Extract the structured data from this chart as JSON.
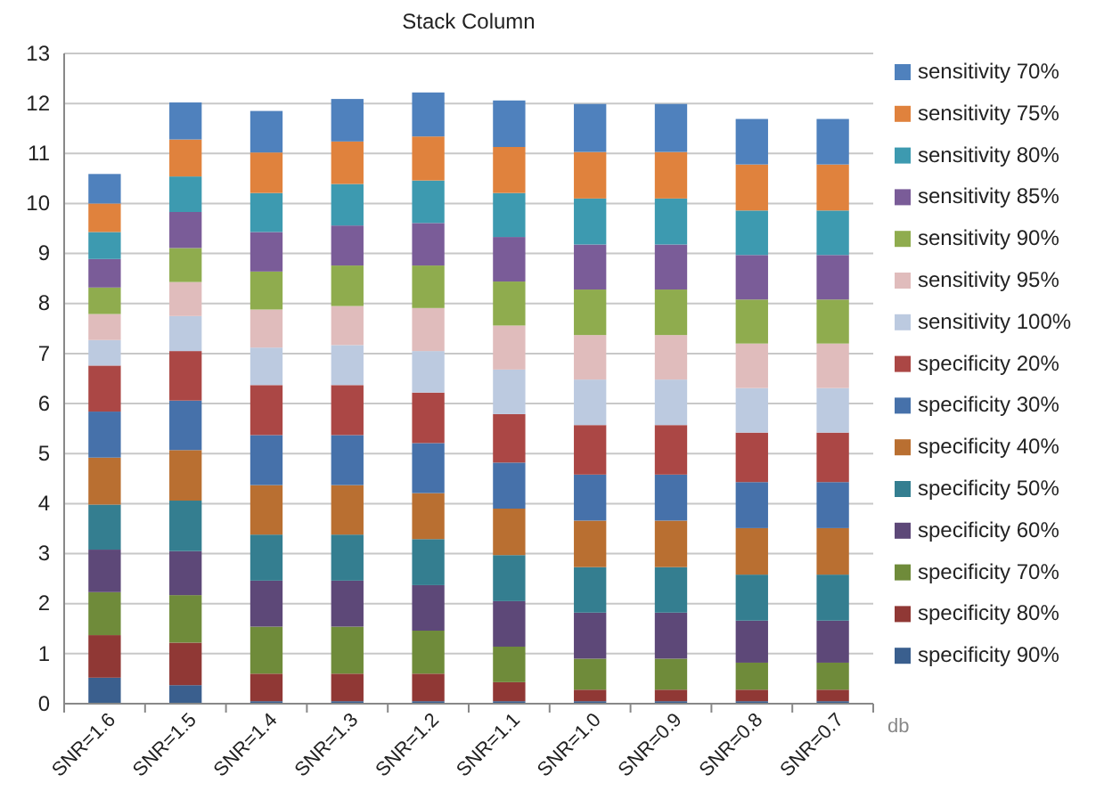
{
  "chart_data": {
    "type": "bar",
    "title": "Stack Column",
    "xlabel": "db",
    "stacked": true,
    "grid": "y",
    "legend": "right",
    "categories": [
      "SNR=1.6",
      "SNR=1.5",
      "SNR=1.4",
      "SNR=1.3",
      "SNR=1.2",
      "SNR=1.1",
      "SNR=1.0",
      "SNR=0.9",
      "SNR=0.8",
      "SNR=0.7"
    ],
    "ylim": [
      0,
      13
    ],
    "yticks": [
      0,
      1,
      2,
      3,
      4,
      5,
      6,
      7,
      8,
      9,
      10,
      11,
      12,
      13
    ],
    "series": [
      {
        "name": "specificity 90%",
        "color": "#3a5f8e",
        "values": [
          0.52,
          0.37,
          0.05,
          0.05,
          0.05,
          0.05,
          0.05,
          0.05,
          0.05,
          0.05
        ]
      },
      {
        "name": "specificity 80%",
        "color": "#903835",
        "values": [
          0.85,
          0.85,
          0.55,
          0.55,
          0.55,
          0.38,
          0.23,
          0.23,
          0.23,
          0.23
        ]
      },
      {
        "name": "specificity 70%",
        "color": "#6f8b3a",
        "values": [
          0.86,
          0.95,
          0.94,
          0.94,
          0.86,
          0.71,
          0.62,
          0.62,
          0.54,
          0.54
        ]
      },
      {
        "name": "specificity 60%",
        "color": "#5d4878",
        "values": [
          0.85,
          0.88,
          0.92,
          0.92,
          0.91,
          0.91,
          0.92,
          0.92,
          0.84,
          0.84
        ]
      },
      {
        "name": "specificity 50%",
        "color": "#347e90",
        "values": [
          0.9,
          1.01,
          0.92,
          0.92,
          0.92,
          0.92,
          0.91,
          0.91,
          0.92,
          0.92
        ]
      },
      {
        "name": "specificity 40%",
        "color": "#b96f31",
        "values": [
          0.94,
          1.01,
          0.99,
          0.99,
          0.92,
          0.93,
          0.93,
          0.93,
          0.93,
          0.93
        ]
      },
      {
        "name": "specificity 30%",
        "color": "#4671aa",
        "values": [
          0.92,
          0.99,
          1.0,
          1.0,
          1.0,
          0.92,
          0.92,
          0.92,
          0.92,
          0.92
        ]
      },
      {
        "name": "specificity 20%",
        "color": "#ab4745",
        "values": [
          0.92,
          0.99,
          1.0,
          1.0,
          1.01,
          0.97,
          0.99,
          0.99,
          0.99,
          0.99
        ]
      },
      {
        "name": "sensitivity 100%",
        "color": "#bccae0",
        "values": [
          0.51,
          0.7,
          0.75,
          0.8,
          0.83,
          0.89,
          0.91,
          0.91,
          0.89,
          0.89
        ]
      },
      {
        "name": "sensitivity 95%",
        "color": "#e0bcbc",
        "values": [
          0.52,
          0.68,
          0.76,
          0.78,
          0.86,
          0.88,
          0.89,
          0.89,
          0.89,
          0.89
        ]
      },
      {
        "name": "sensitivity 90%",
        "color": "#8fac4e",
        "values": [
          0.53,
          0.68,
          0.76,
          0.81,
          0.85,
          0.88,
          0.91,
          0.91,
          0.88,
          0.88
        ]
      },
      {
        "name": "sensitivity 85%",
        "color": "#7a5c98",
        "values": [
          0.57,
          0.72,
          0.79,
          0.8,
          0.85,
          0.89,
          0.9,
          0.9,
          0.89,
          0.89
        ]
      },
      {
        "name": "sensitivity 80%",
        "color": "#3d9ab0",
        "values": [
          0.54,
          0.71,
          0.78,
          0.83,
          0.85,
          0.88,
          0.92,
          0.92,
          0.89,
          0.89
        ]
      },
      {
        "name": "sensitivity 75%",
        "color": "#e0823d",
        "values": [
          0.57,
          0.74,
          0.81,
          0.85,
          0.88,
          0.92,
          0.93,
          0.93,
          0.92,
          0.92
        ]
      },
      {
        "name": "sensitivity 70%",
        "color": "#4f81bd",
        "values": [
          0.59,
          0.74,
          0.83,
          0.85,
          0.88,
          0.93,
          0.96,
          0.96,
          0.91,
          0.91
        ]
      }
    ]
  }
}
